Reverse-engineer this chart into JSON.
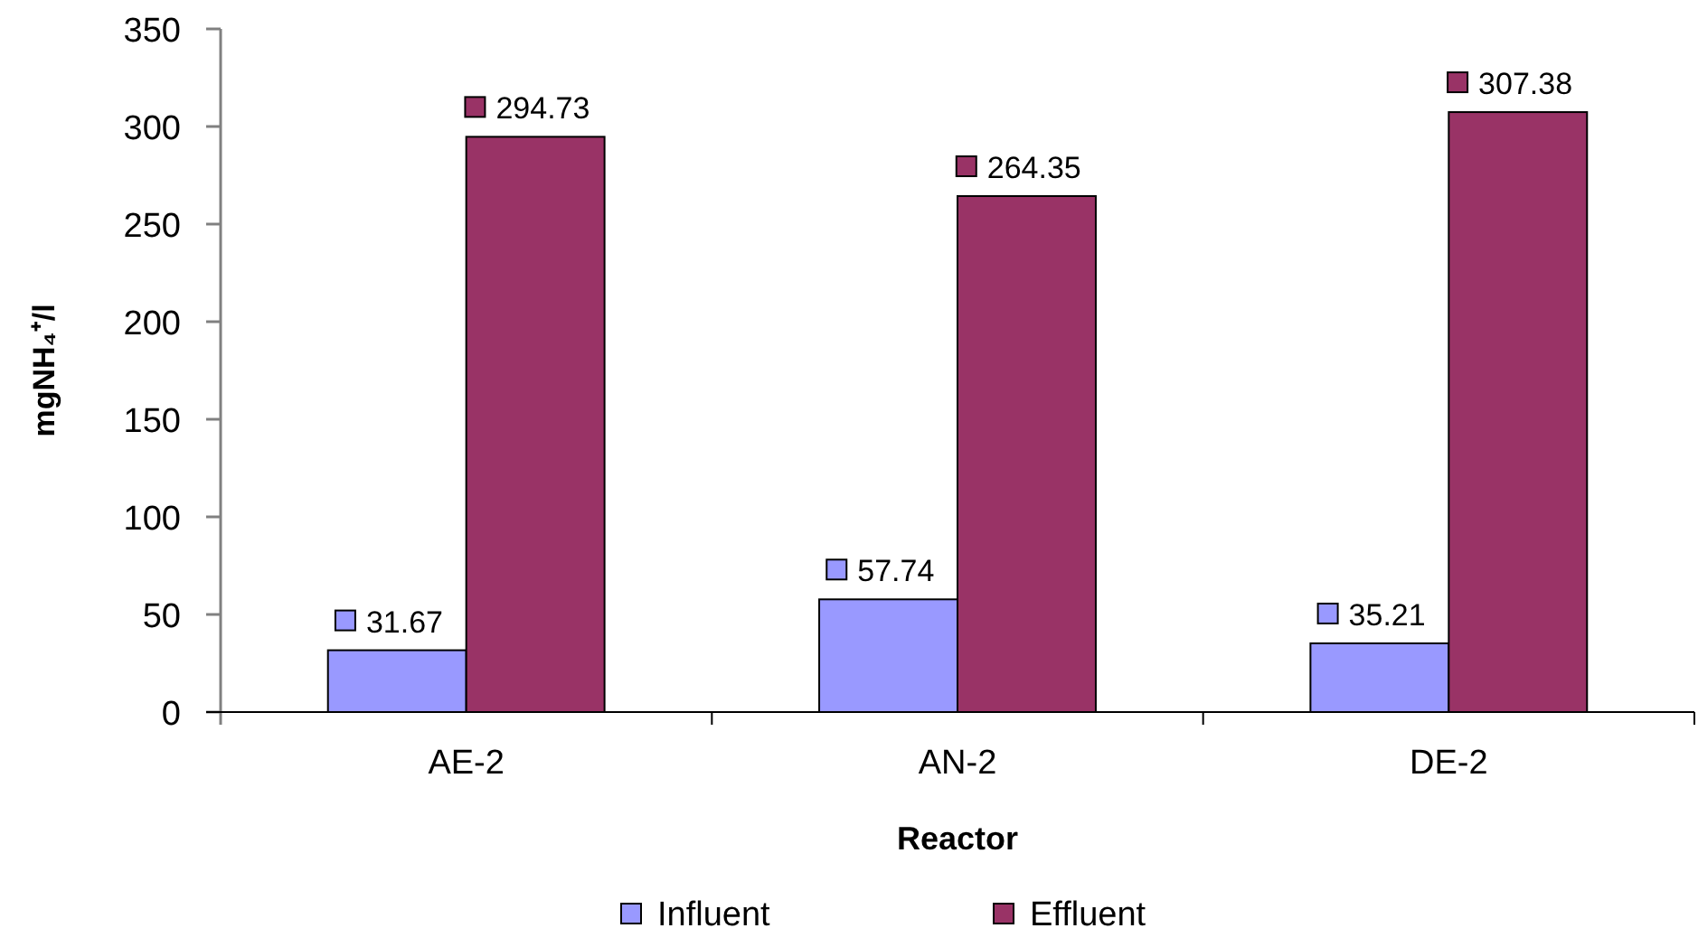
{
  "chart_data": {
    "type": "bar",
    "xlabel": "Reactor",
    "ylabel": "mgNH₄⁺/l",
    "categories": [
      "AE-2",
      "AN-2",
      "DE-2"
    ],
    "series": [
      {
        "name": "Influent",
        "color": "#9999ff",
        "values": [
          31.67,
          57.74,
          35.21
        ]
      },
      {
        "name": "Effluent",
        "color": "#993366",
        "values": [
          294.73,
          264.35,
          307.38
        ]
      }
    ],
    "ylim": [
      0,
      350
    ],
    "yticks": [
      0,
      50,
      100,
      150,
      200,
      250,
      300,
      350
    ],
    "data_labels": true,
    "legend": "bottom"
  }
}
